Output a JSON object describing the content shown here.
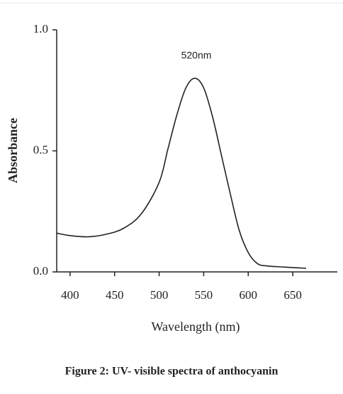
{
  "chart_data": {
    "type": "line",
    "annotation": "520nm",
    "xlabel": "Wavelength (nm)",
    "ylabel": "Absorbance",
    "caption": "Figure 2: UV- visible spectra of anthocyanin",
    "x": [
      385,
      400,
      420,
      440,
      460,
      480,
      500,
      510,
      520,
      530,
      540,
      550,
      560,
      570,
      580,
      590,
      600,
      610,
      620,
      640,
      665
    ],
    "series": [
      {
        "color": "#222222",
        "values": [
          0.16,
          0.15,
          0.145,
          0.155,
          0.18,
          0.24,
          0.37,
          0.51,
          0.65,
          0.76,
          0.8,
          0.76,
          0.64,
          0.48,
          0.32,
          0.17,
          0.08,
          0.035,
          0.025,
          0.02,
          0.015
        ]
      }
    ],
    "xlim": [
      385,
      700
    ],
    "ylim": [
      0,
      1
    ],
    "xticks": [
      400,
      450,
      500,
      550,
      600,
      650
    ],
    "yticks": [
      {
        "value": 0,
        "label": "0.0"
      },
      {
        "value": 0.5,
        "label": "0.5"
      },
      {
        "value": 1,
        "label": "1.0"
      }
    ]
  }
}
